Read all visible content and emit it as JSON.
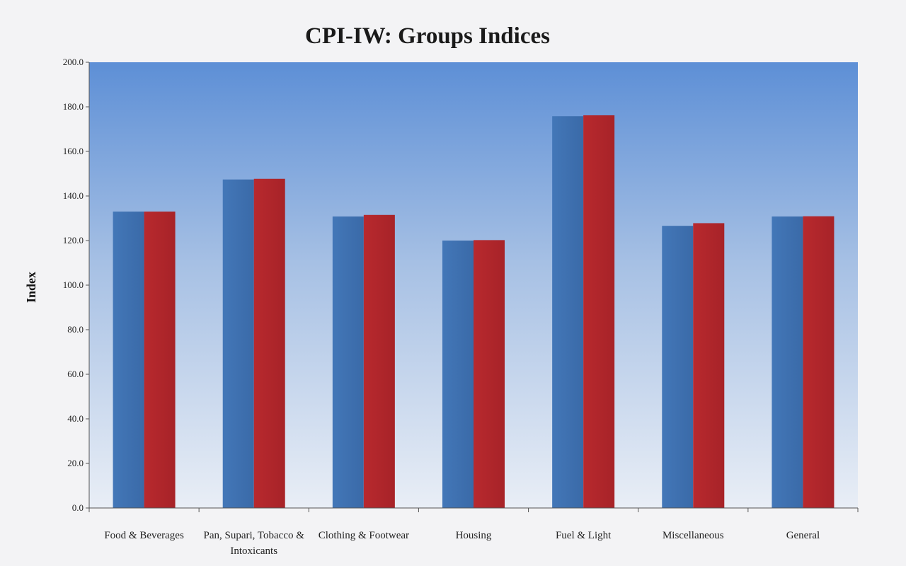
{
  "chart_data": {
    "type": "bar",
    "title": "CPI-IW: Groups Indices",
    "xlabel": "",
    "ylabel": "Index",
    "ylim": [
      0,
      200
    ],
    "yticks": [
      "0.0",
      "20.0",
      "40.0",
      "60.0",
      "80.0",
      "100.0",
      "120.0",
      "140.0",
      "160.0",
      "180.0",
      "200.0"
    ],
    "categories": [
      [
        "Food & Beverages"
      ],
      [
        "Pan, Supari, Tobacco &",
        "Intoxicants"
      ],
      [
        "Clothing & Footwear"
      ],
      [
        "Housing"
      ],
      [
        "Fuel & Light"
      ],
      [
        "Miscellaneous"
      ],
      [
        "General"
      ]
    ],
    "series": [
      {
        "color": "#3a6fae",
        "values": [
          133.0,
          147.4,
          130.8,
          120.0,
          175.8,
          126.6,
          130.8
        ]
      },
      {
        "color": "#b3282d",
        "values": [
          133.0,
          147.7,
          131.5,
          120.2,
          176.2,
          127.8,
          130.9
        ]
      }
    ],
    "grid": false,
    "legend": "none"
  }
}
